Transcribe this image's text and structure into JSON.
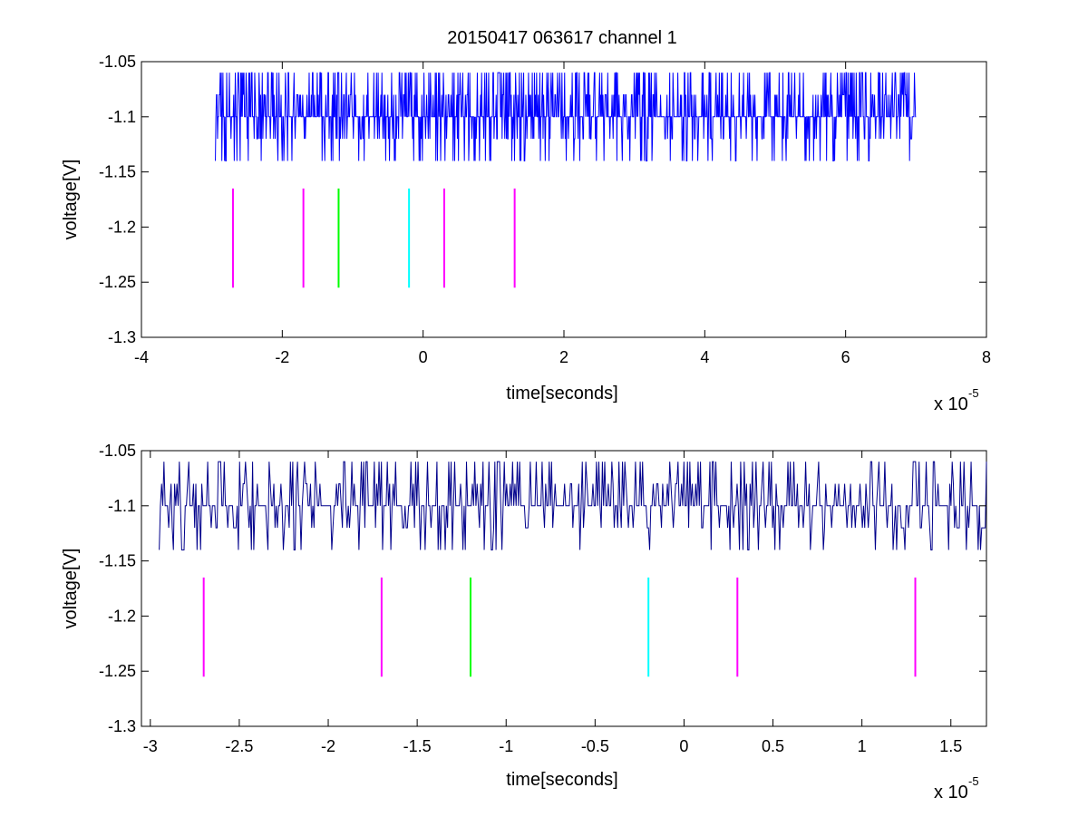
{
  "chart_data": [
    {
      "type": "line",
      "title": "20150417 063617 channel 1",
      "xlabel": "time[seconds]",
      "ylabel": "voltage[V]",
      "x_multiplier_label": "x 10",
      "x_multiplier_exponent": "-5",
      "xlim": [
        -4,
        8
      ],
      "ylim": [
        -1.3,
        -1.05
      ],
      "xticks": [
        -4,
        -2,
        0,
        2,
        4,
        6,
        8
      ],
      "xtick_labels": [
        "-4",
        "-2",
        "0",
        "2",
        "4",
        "6",
        "8"
      ],
      "yticks": [
        -1.3,
        -1.25,
        -1.2,
        -1.15,
        -1.1,
        -1.05
      ],
      "ytick_labels": [
        "-1.3",
        "-1.25",
        "-1.2",
        "-1.15",
        "-1.1",
        "-1.05"
      ],
      "grid": false,
      "series": [
        {
          "kind": "signal",
          "color": "#0000ff",
          "x_range": [
            -2.95,
            7.0
          ],
          "levels": [
            -1.14,
            -1.12,
            -1.1,
            -1.08,
            -1.06
          ]
        }
      ],
      "markers": [
        {
          "x": -2.7,
          "y": [
            -1.255,
            -1.165
          ],
          "color": "#ff00ff"
        },
        {
          "x": -1.7,
          "y": [
            -1.255,
            -1.165
          ],
          "color": "#ff00ff"
        },
        {
          "x": -1.2,
          "y": [
            -1.255,
            -1.165
          ],
          "color": "#00ff00"
        },
        {
          "x": -0.2,
          "y": [
            -1.255,
            -1.165
          ],
          "color": "#00ffff"
        },
        {
          "x": 0.3,
          "y": [
            -1.255,
            -1.165
          ],
          "color": "#ff00ff"
        },
        {
          "x": 1.3,
          "y": [
            -1.255,
            -1.165
          ],
          "color": "#ff00ff"
        }
      ]
    },
    {
      "type": "line",
      "title": "",
      "xlabel": "time[seconds]",
      "ylabel": "voltage[V]",
      "x_multiplier_label": "x 10",
      "x_multiplier_exponent": "-5",
      "xlim": [
        -3.05,
        1.7
      ],
      "ylim": [
        -1.3,
        -1.05
      ],
      "xticks": [
        -3,
        -2.5,
        -2,
        -1.5,
        -1,
        -0.5,
        0,
        0.5,
        1,
        1.5
      ],
      "xtick_labels": [
        "-3",
        "-2.5",
        "-2",
        "-1.5",
        "-1",
        "-0.5",
        "0",
        "0.5",
        "1",
        "1.5"
      ],
      "yticks": [
        -1.3,
        -1.25,
        -1.2,
        -1.15,
        -1.1,
        -1.05
      ],
      "ytick_labels": [
        "-1.3",
        "-1.25",
        "-1.2",
        "-1.15",
        "-1.1",
        "-1.05"
      ],
      "grid": false,
      "series": [
        {
          "kind": "signal",
          "color": "#00008b",
          "x_range": [
            -2.95,
            1.7
          ],
          "levels": [
            -1.14,
            -1.12,
            -1.1,
            -1.08,
            -1.06
          ]
        }
      ],
      "markers": [
        {
          "x": -2.7,
          "y": [
            -1.255,
            -1.165
          ],
          "color": "#ff00ff"
        },
        {
          "x": -1.7,
          "y": [
            -1.255,
            -1.165
          ],
          "color": "#ff00ff"
        },
        {
          "x": -1.2,
          "y": [
            -1.255,
            -1.165
          ],
          "color": "#00ff00"
        },
        {
          "x": -0.2,
          "y": [
            -1.255,
            -1.165
          ],
          "color": "#00ffff"
        },
        {
          "x": 0.3,
          "y": [
            -1.255,
            -1.165
          ],
          "color": "#ff00ff"
        },
        {
          "x": 1.3,
          "y": [
            -1.255,
            -1.165
          ],
          "color": "#ff00ff"
        }
      ]
    }
  ]
}
